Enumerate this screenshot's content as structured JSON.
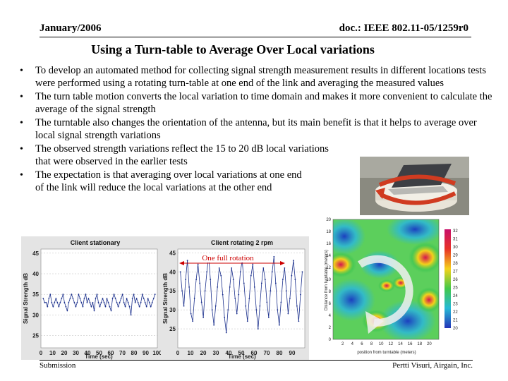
{
  "header": {
    "date": "January/2006",
    "doc": "doc.: IEEE 802.11-05/1259r0"
  },
  "title": "Using a Turn-table to Average Over Local variations",
  "bullets": [
    "To develop an automated method for collecting signal strength measurement results in different locations tests were performed using a rotating turn-table at one end of the link and averaging the measured values",
    "The turn table motion converts the local variation to time domain and makes it more convenient to calculate the average of the signal strength",
    "The turntable also changes the orientation of the antenna, but its main benefit is that it helps to average over local signal strength variations",
    "The observed strength variations reflect the 15 to 20 dB local variations that were observed in the earlier tests",
    "The expectation is that averaging over local variations at one end of the link will reduce the local variations at the other end"
  ],
  "footer": {
    "left": "Submission",
    "right": "Pertti Visuri, Airgain, Inc."
  },
  "chart_data": [
    {
      "type": "line",
      "title": "Client stationary",
      "xlabel": "Time (sec)",
      "ylabel": "Signal Strength dB",
      "xlim": [
        0,
        100
      ],
      "ylim": [
        22,
        46
      ],
      "xticks": [
        "0",
        "10",
        "20",
        "30",
        "40",
        "50",
        "60",
        "70",
        "80",
        "90",
        "100"
      ],
      "yticks": [
        "25",
        "30",
        "35",
        "40",
        "45"
      ],
      "values": [
        34,
        33,
        33,
        32,
        34,
        35,
        33,
        32,
        33,
        34,
        33,
        32,
        33,
        34,
        35,
        33,
        32,
        31,
        33,
        34,
        35,
        34,
        33,
        32,
        33,
        35,
        34,
        33,
        32,
        34,
        35,
        33,
        34,
        33,
        32,
        33,
        31,
        34,
        35,
        33,
        32,
        33,
        34,
        33,
        32,
        34,
        33,
        32,
        31,
        34,
        35,
        34,
        33,
        32,
        33,
        34,
        35,
        33,
        32,
        34,
        33,
        32,
        30,
        34,
        35,
        33,
        34,
        33,
        32,
        33,
        35,
        34,
        33,
        32,
        34,
        33,
        32,
        33,
        34,
        35
      ]
    },
    {
      "type": "line",
      "title": "Client rotating 2 rpm",
      "annotation": "One full rotation",
      "xlabel": "Time (sec)",
      "ylabel": "Signal Strength dB",
      "xlim": [
        0,
        100
      ],
      "ylim": [
        20,
        46
      ],
      "xticks": [
        "0",
        "10",
        "20",
        "30",
        "40",
        "50",
        "60",
        "70",
        "80",
        "90"
      ],
      "yticks": [
        "25",
        "30",
        "35",
        "40",
        "45"
      ],
      "values": [
        40,
        35,
        31,
        38,
        43,
        36,
        29,
        27,
        33,
        38,
        42,
        37,
        32,
        28,
        35,
        40,
        44,
        38,
        30,
        26,
        31,
        36,
        41,
        39,
        34,
        28,
        24,
        30,
        36,
        41,
        38,
        33,
        29,
        34,
        40,
        43,
        37,
        31,
        27,
        33,
        39,
        42,
        36,
        30,
        25,
        31,
        37,
        41,
        38,
        32,
        28,
        35,
        40,
        44,
        37,
        30,
        26,
        32,
        38,
        41,
        35,
        29,
        33,
        39,
        43,
        38,
        31,
        27,
        34,
        40
      ]
    },
    {
      "type": "heatmap",
      "xlabel": "position from turntable (meters)",
      "ylabel": "Distance from turntable (meters)",
      "yticks": [
        "0",
        "2",
        "4",
        "6",
        "8",
        "10",
        "12",
        "14",
        "16",
        "18",
        "20"
      ],
      "xticks": [
        "2",
        "4",
        "6",
        "8",
        "10",
        "12",
        "14",
        "16",
        "18",
        "20"
      ],
      "colorbar": [
        "32",
        "31",
        "30",
        "29",
        "28",
        "27",
        "26",
        "25",
        "24",
        "23",
        "22",
        "21",
        "20"
      ]
    }
  ]
}
